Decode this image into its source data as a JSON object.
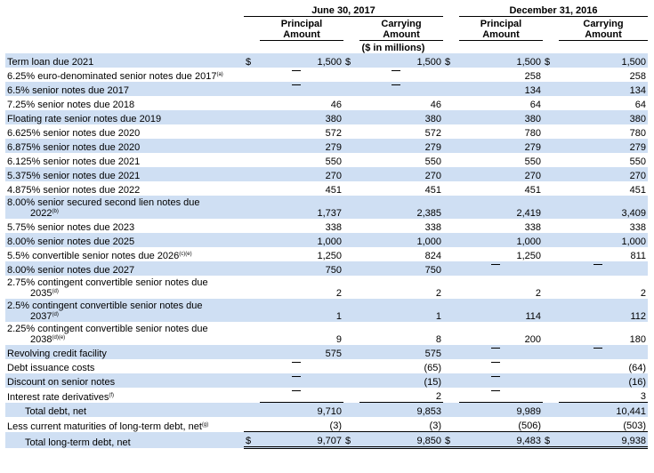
{
  "headers": {
    "period1": "June 30, 2017",
    "period2": "December 31, 2016",
    "col_principal": [
      "Principal",
      "Amount"
    ],
    "col_carrying": [
      "Carrying",
      "Amount"
    ],
    "units": "($ in millions)",
    "currency_symbol": "$"
  },
  "rows": [
    {
      "label": "Term loan due 2021",
      "sup": "",
      "vals": [
        "1,500",
        "1,500",
        "1,500",
        "1,500"
      ],
      "dollar": true
    },
    {
      "label": "6.25% euro-denominated senior notes due 2017",
      "sup": "(a)",
      "vals": [
        "—",
        "—",
        "258",
        "258"
      ]
    },
    {
      "label": "6.5% senior notes due 2017",
      "sup": "",
      "vals": [
        "—",
        "—",
        "134",
        "134"
      ]
    },
    {
      "label": "7.25% senior notes due 2018",
      "sup": "",
      "vals": [
        "46",
        "46",
        "64",
        "64"
      ]
    },
    {
      "label": "Floating rate senior notes due 2019",
      "sup": "",
      "vals": [
        "380",
        "380",
        "380",
        "380"
      ]
    },
    {
      "label": "6.625% senior notes due 2020",
      "sup": "",
      "vals": [
        "572",
        "572",
        "780",
        "780"
      ]
    },
    {
      "label": "6.875% senior notes due 2020",
      "sup": "",
      "vals": [
        "279",
        "279",
        "279",
        "279"
      ]
    },
    {
      "label": "6.125% senior notes due 2021",
      "sup": "",
      "vals": [
        "550",
        "550",
        "550",
        "550"
      ]
    },
    {
      "label": "5.375% senior notes due 2021",
      "sup": "",
      "vals": [
        "270",
        "270",
        "270",
        "270"
      ]
    },
    {
      "label": "4.875% senior notes due 2022",
      "sup": "",
      "vals": [
        "451",
        "451",
        "451",
        "451"
      ]
    },
    {
      "label": "8.00% senior secured second lien notes due",
      "label2": "2022",
      "sup": "(b)",
      "vals": [
        "1,737",
        "2,385",
        "2,419",
        "3,409"
      ]
    },
    {
      "label": "5.75% senior notes due 2023",
      "sup": "",
      "vals": [
        "338",
        "338",
        "338",
        "338"
      ]
    },
    {
      "label": "8.00% senior notes due 2025",
      "sup": "",
      "vals": [
        "1,000",
        "1,000",
        "1,000",
        "1,000"
      ]
    },
    {
      "label": "5.5% convertible senior notes due 2026",
      "sup": "(c)(e)",
      "vals": [
        "1,250",
        "824",
        "1,250",
        "811"
      ]
    },
    {
      "label": "8.00% senior notes due 2027",
      "sup": "",
      "vals": [
        "750",
        "750",
        "—",
        "—"
      ]
    },
    {
      "label": "2.75% contingent convertible senior notes due",
      "label2": "2035",
      "sup": "(d)",
      "vals": [
        "2",
        "2",
        "2",
        "2"
      ]
    },
    {
      "label": "2.5% contingent convertible senior notes due",
      "label2": "2037",
      "sup": "(d)",
      "vals": [
        "1",
        "1",
        "114",
        "112"
      ]
    },
    {
      "label": "2.25% contingent convertible senior notes due",
      "label2": "2038",
      "sup": "(d)(e)",
      "vals": [
        "9",
        "8",
        "200",
        "180"
      ]
    },
    {
      "label": "Revolving credit facility",
      "sup": "",
      "vals": [
        "575",
        "575",
        "—",
        "—"
      ]
    },
    {
      "label": "Debt issuance costs",
      "sup": "",
      "vals": [
        "—",
        "(65)",
        "—",
        "(64)"
      ]
    },
    {
      "label": "Discount on senior notes",
      "sup": "",
      "vals": [
        "—",
        "(15)",
        "—",
        "(16)"
      ]
    },
    {
      "label": "Interest rate derivatives",
      "sup": "(f)",
      "vals": [
        "—",
        "2",
        "—",
        "3"
      ]
    },
    {
      "label": "Total debt, net",
      "sup": "",
      "vals": [
        "9,710",
        "9,853",
        "9,989",
        "10,441"
      ],
      "total": true
    },
    {
      "label": "Less current maturities of long-term debt, net",
      "sup": "(g)",
      "vals": [
        "(3)",
        "(3)",
        "(506)",
        "(503)"
      ]
    },
    {
      "label": "Total long-term debt, net",
      "sup": "",
      "vals": [
        "9,707",
        "9,850",
        "9,483",
        "9,938"
      ],
      "total": true,
      "dollar": true
    }
  ]
}
